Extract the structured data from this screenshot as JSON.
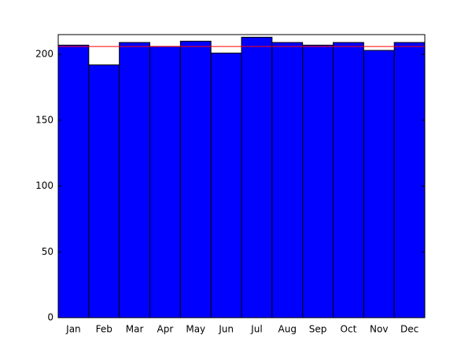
{
  "chart_data": {
    "type": "bar",
    "categories": [
      "Jan",
      "Feb",
      "Mar",
      "Apr",
      "May",
      "Jun",
      "Jul",
      "Aug",
      "Sep",
      "Oct",
      "Nov",
      "Dec"
    ],
    "values": [
      207,
      192,
      209,
      206,
      210,
      201,
      213,
      209,
      207,
      209,
      203,
      209
    ],
    "color": "#0000ff",
    "reference_line": {
      "value": 206,
      "color": "#ff0000"
    },
    "ylim": [
      0,
      215
    ],
    "yticks": [
      0,
      50,
      100,
      150,
      200
    ]
  }
}
